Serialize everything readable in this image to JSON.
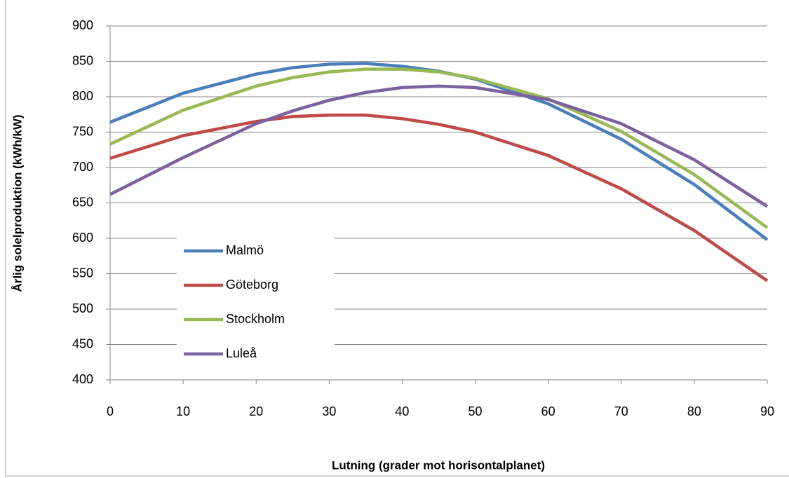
{
  "chart_data": {
    "type": "line",
    "x_label": "Lutning (grader mot horisontalplanet)",
    "y_label": "Årlig solelproduktion (kWh/kW)",
    "x": [
      0,
      10,
      20,
      25,
      30,
      35,
      40,
      45,
      50,
      60,
      70,
      80,
      90
    ],
    "series": [
      {
        "name": "Malmö",
        "color": "#4a7ebb",
        "values": [
          764,
          805,
          832,
          841,
          846,
          847,
          843,
          836,
          825,
          790,
          740,
          676,
          598
        ]
      },
      {
        "name": "Göteborg",
        "color": "#be4b48",
        "values": [
          713,
          745,
          765,
          772,
          774,
          774,
          769,
          761,
          750,
          717,
          670,
          611,
          540
        ]
      },
      {
        "name": "Stockholm",
        "color": "#98b954",
        "values": [
          733,
          781,
          815,
          827,
          835,
          839,
          839,
          835,
          826,
          797,
          751,
          690,
          615
        ]
      },
      {
        "name": "Luleå",
        "color": "#7d60a0",
        "values": [
          662,
          714,
          762,
          780,
          795,
          806,
          813,
          815,
          813,
          796,
          762,
          711,
          645
        ]
      }
    ],
    "xlim": [
      0,
      90
    ],
    "xticks": [
      0,
      10,
      20,
      30,
      40,
      50,
      60,
      70,
      80,
      90
    ],
    "ylim": [
      400,
      900
    ],
    "yticks": [
      400,
      450,
      500,
      550,
      600,
      650,
      700,
      750,
      800,
      850,
      900
    ],
    "grid": true
  }
}
